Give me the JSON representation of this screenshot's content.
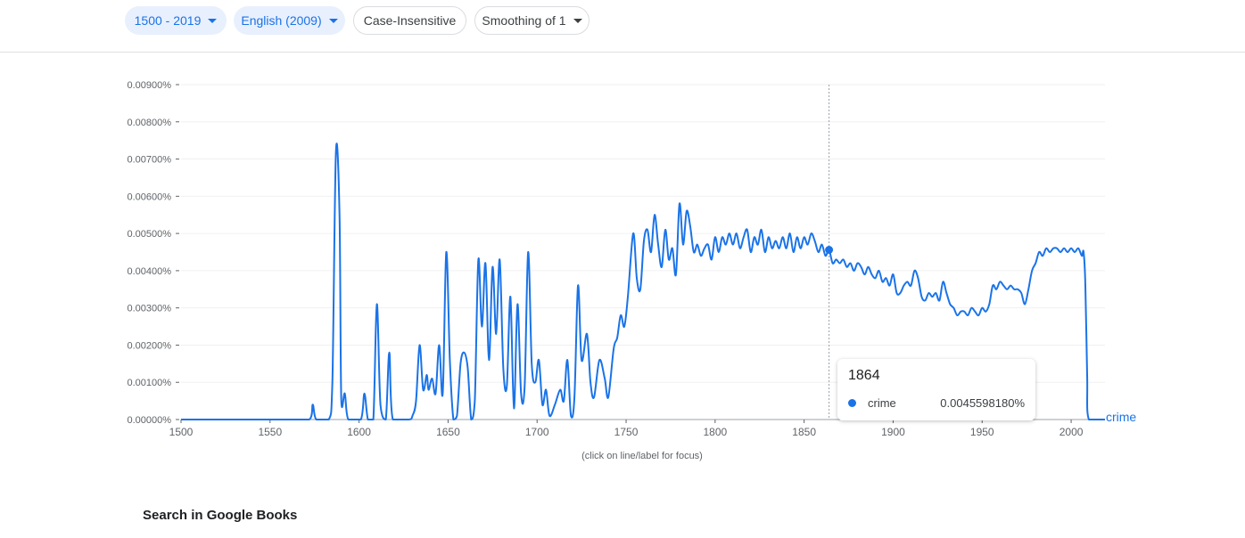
{
  "toolbar": {
    "year_range": "1500 - 2019",
    "corpus": "English (2009)",
    "case": "Case-Insensitive",
    "smoothing": "Smoothing of 1"
  },
  "colors": {
    "accent": "#1a73e8",
    "chip_bg": "#e8f0fe"
  },
  "hint": "(click on line/label for focus)",
  "books_heading": "Search in Google Books",
  "tooltip": {
    "year": "1864",
    "term": "crime",
    "value": "0.0045598180%"
  },
  "chart_data": {
    "type": "line",
    "xlim": [
      1500,
      2019
    ],
    "ylim": [
      0,
      0.009
    ],
    "x_ticks": [
      "1500",
      "1550",
      "1600",
      "1650",
      "1700",
      "1750",
      "1800",
      "1850",
      "1900",
      "1950",
      "2000"
    ],
    "y_ticks": [
      "0.00000%",
      "0.00100%",
      "0.00200%",
      "0.00300%",
      "0.00400%",
      "0.00500%",
      "0.00600%",
      "0.00700%",
      "0.00800%",
      "0.00900%"
    ],
    "grid": "horizontal",
    "focus_year": 1864,
    "series": [
      {
        "name": "crime",
        "color": "#1a73e8",
        "points": [
          [
            1500,
            0
          ],
          [
            1560,
            0
          ],
          [
            1572,
            0
          ],
          [
            1574,
            0.0004
          ],
          [
            1576,
            0
          ],
          [
            1583,
            0
          ],
          [
            1585,
            0.001
          ],
          [
            1587,
            0.0072
          ],
          [
            1589,
            0.0055
          ],
          [
            1590,
            0.0005
          ],
          [
            1592,
            0.0007
          ],
          [
            1594,
            0
          ],
          [
            1601,
            0
          ],
          [
            1603,
            0.0007
          ],
          [
            1605,
            0
          ],
          [
            1608,
            0
          ],
          [
            1610,
            0.0031
          ],
          [
            1612,
            0.0004
          ],
          [
            1615,
            0
          ],
          [
            1617,
            0.0018
          ],
          [
            1619,
            0
          ],
          [
            1628,
            0
          ],
          [
            1630,
            0.0001
          ],
          [
            1632,
            0.0005
          ],
          [
            1634,
            0.002
          ],
          [
            1636,
            0.0008
          ],
          [
            1638,
            0.0012
          ],
          [
            1639,
            0.0008
          ],
          [
            1641,
            0.0011
          ],
          [
            1643,
            0.0007
          ],
          [
            1645,
            0.002
          ],
          [
            1647,
            0.0007
          ],
          [
            1649,
            0.0045
          ],
          [
            1651,
            0.0016
          ],
          [
            1653,
            0
          ],
          [
            1655,
            0.0001
          ],
          [
            1657,
            0.0015
          ],
          [
            1659,
            0.0018
          ],
          [
            1661,
            0.0014
          ],
          [
            1663,
            0
          ],
          [
            1665,
            0.0005
          ],
          [
            1667,
            0.0043
          ],
          [
            1669,
            0.0025
          ],
          [
            1671,
            0.0042
          ],
          [
            1673,
            0.0016
          ],
          [
            1675,
            0.0041
          ],
          [
            1677,
            0.0023
          ],
          [
            1679,
            0.0043
          ],
          [
            1681,
            0.0014
          ],
          [
            1683,
            0.0009
          ],
          [
            1685,
            0.0033
          ],
          [
            1687,
            0.0003
          ],
          [
            1689,
            0.0031
          ],
          [
            1691,
            0.0007
          ],
          [
            1693,
            0.0009
          ],
          [
            1695,
            0.0045
          ],
          [
            1697,
            0.0015
          ],
          [
            1699,
            0.001
          ],
          [
            1701,
            0.0016
          ],
          [
            1703,
            0.0004
          ],
          [
            1705,
            0.0008
          ],
          [
            1707,
            0.0001
          ],
          [
            1710,
            0.0004
          ],
          [
            1713,
            0.0008
          ],
          [
            1715,
            0.0005
          ],
          [
            1717,
            0.0016
          ],
          [
            1719,
            0.0001
          ],
          [
            1721,
            0.0006
          ],
          [
            1723,
            0.0036
          ],
          [
            1725,
            0.0016
          ],
          [
            1728,
            0.0023
          ],
          [
            1730,
            0.001
          ],
          [
            1732,
            0.0006
          ],
          [
            1735,
            0.0016
          ],
          [
            1738,
            0.0011
          ],
          [
            1740,
            0.0006
          ],
          [
            1743,
            0.0019
          ],
          [
            1745,
            0.0022
          ],
          [
            1747,
            0.0028
          ],
          [
            1749,
            0.0025
          ],
          [
            1751,
            0.0033
          ],
          [
            1754,
            0.005
          ],
          [
            1756,
            0.0038
          ],
          [
            1758,
            0.0035
          ],
          [
            1760,
            0.0048
          ],
          [
            1762,
            0.0051
          ],
          [
            1764,
            0.0045
          ],
          [
            1766,
            0.0055
          ],
          [
            1768,
            0.0047
          ],
          [
            1770,
            0.0041
          ],
          [
            1772,
            0.0051
          ],
          [
            1774,
            0.0043
          ],
          [
            1776,
            0.0046
          ],
          [
            1778,
            0.0039
          ],
          [
            1780,
            0.0058
          ],
          [
            1782,
            0.0047
          ],
          [
            1784,
            0.0056
          ],
          [
            1786,
            0.0052
          ],
          [
            1788,
            0.0045
          ],
          [
            1790,
            0.0047
          ],
          [
            1792,
            0.0044
          ],
          [
            1794,
            0.0046
          ],
          [
            1796,
            0.0047
          ],
          [
            1798,
            0.0043
          ],
          [
            1800,
            0.0049
          ],
          [
            1802,
            0.0045
          ],
          [
            1804,
            0.0049
          ],
          [
            1806,
            0.0047
          ],
          [
            1808,
            0.005
          ],
          [
            1810,
            0.0047
          ],
          [
            1812,
            0.005
          ],
          [
            1814,
            0.0046
          ],
          [
            1816,
            0.0049
          ],
          [
            1818,
            0.0051
          ],
          [
            1820,
            0.0045
          ],
          [
            1822,
            0.0049
          ],
          [
            1824,
            0.0047
          ],
          [
            1826,
            0.0051
          ],
          [
            1828,
            0.0045
          ],
          [
            1830,
            0.0049
          ],
          [
            1832,
            0.0046
          ],
          [
            1834,
            0.0048
          ],
          [
            1836,
            0.0046
          ],
          [
            1838,
            0.0049
          ],
          [
            1840,
            0.0046
          ],
          [
            1842,
            0.005
          ],
          [
            1844,
            0.0045
          ],
          [
            1846,
            0.0049
          ],
          [
            1848,
            0.0046
          ],
          [
            1850,
            0.0049
          ],
          [
            1852,
            0.0047
          ],
          [
            1854,
            0.005
          ],
          [
            1856,
            0.0048
          ],
          [
            1858,
            0.0045
          ],
          [
            1860,
            0.0047
          ],
          [
            1862,
            0.0044
          ],
          [
            1864,
            0.0045598
          ],
          [
            1866,
            0.0042
          ],
          [
            1868,
            0.0043
          ],
          [
            1870,
            0.0042
          ],
          [
            1872,
            0.0043
          ],
          [
            1874,
            0.0041
          ],
          [
            1876,
            0.0042
          ],
          [
            1878,
            0.004
          ],
          [
            1880,
            0.0042
          ],
          [
            1882,
            0.0041
          ],
          [
            1884,
            0.0039
          ],
          [
            1886,
            0.0041
          ],
          [
            1888,
            0.0039
          ],
          [
            1890,
            0.0038
          ],
          [
            1892,
            0.004
          ],
          [
            1894,
            0.0037
          ],
          [
            1896,
            0.0038
          ],
          [
            1898,
            0.0036
          ],
          [
            1900,
            0.0039
          ],
          [
            1902,
            0.0034
          ],
          [
            1904,
            0.0034
          ],
          [
            1906,
            0.0036
          ],
          [
            1908,
            0.0037
          ],
          [
            1910,
            0.0036
          ],
          [
            1912,
            0.004
          ],
          [
            1914,
            0.0038
          ],
          [
            1916,
            0.0033
          ],
          [
            1918,
            0.0032
          ],
          [
            1920,
            0.0034
          ],
          [
            1922,
            0.0033
          ],
          [
            1924,
            0.0034
          ],
          [
            1926,
            0.0032
          ],
          [
            1928,
            0.0037
          ],
          [
            1930,
            0.0034
          ],
          [
            1932,
            0.0031
          ],
          [
            1934,
            0.003
          ],
          [
            1936,
            0.0028
          ],
          [
            1938,
            0.0029
          ],
          [
            1940,
            0.0029
          ],
          [
            1942,
            0.0028
          ],
          [
            1944,
            0.003
          ],
          [
            1946,
            0.0029
          ],
          [
            1948,
            0.0028
          ],
          [
            1950,
            0.003
          ],
          [
            1952,
            0.0029
          ],
          [
            1954,
            0.0031
          ],
          [
            1956,
            0.0036
          ],
          [
            1958,
            0.0035
          ],
          [
            1960,
            0.0037
          ],
          [
            1962,
            0.0036
          ],
          [
            1964,
            0.0035
          ],
          [
            1966,
            0.0036
          ],
          [
            1968,
            0.0035
          ],
          [
            1970,
            0.0035
          ],
          [
            1972,
            0.0034
          ],
          [
            1974,
            0.0031
          ],
          [
            1976,
            0.0035
          ],
          [
            1978,
            0.004
          ],
          [
            1980,
            0.0042
          ],
          [
            1982,
            0.0045
          ],
          [
            1984,
            0.0044
          ],
          [
            1986,
            0.0046
          ],
          [
            1988,
            0.0045
          ],
          [
            1990,
            0.0046
          ],
          [
            1992,
            0.0046
          ],
          [
            1994,
            0.0045
          ],
          [
            1996,
            0.0046
          ],
          [
            1998,
            0.0045
          ],
          [
            2000,
            0.0046
          ],
          [
            2002,
            0.0045
          ],
          [
            2004,
            0.0046
          ],
          [
            2006,
            0.0044
          ],
          [
            2007,
            0.0045
          ],
          [
            2008,
            0.0036
          ],
          [
            2009,
            0.0012
          ],
          [
            2010,
            0
          ],
          [
            2019,
            0
          ]
        ]
      }
    ]
  }
}
